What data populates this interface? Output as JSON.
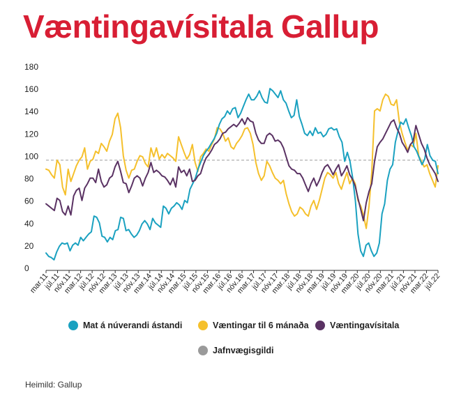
{
  "title": "Væntingavísitala Gallup",
  "source": "Heimild: Gallup",
  "colors": {
    "title": "#d81e34",
    "current": "#1aa1c0",
    "expectations": "#f5c02c",
    "index": "#5a3263",
    "equilibrium": "#9a9a9a"
  },
  "legend": {
    "current": "Mat á núverandi ástandi",
    "expectations": "Væntingar til 6 mánaða",
    "index": "Væntingavísitala",
    "equilibrium": "Jafnvægisgildi"
  },
  "chart_data": {
    "type": "line",
    "ylim": [
      0,
      180
    ],
    "yticks": [
      0,
      20,
      40,
      60,
      80,
      100,
      120,
      140,
      160,
      180
    ],
    "equilibrium": 96,
    "x_start": "2011-03",
    "x_end": "2022-07",
    "xtick_labels": [
      "mar.11",
      "júl.11",
      "nóv.11",
      "mar.12",
      "júl.12",
      "nóv.12",
      "mar.13",
      "júl.13",
      "nóv.13",
      "mar.14",
      "júl.14",
      "nóv.14",
      "mar.15",
      "júl.15",
      "nóv.15",
      "mar.16",
      "júl.16",
      "nóv.16",
      "mar.17",
      "júl.17",
      "nóv.17",
      "mar.18",
      "júl.18",
      "nóv.18",
      "mar.19",
      "júl.19",
      "nóv.19",
      "mar.20",
      "júl.20",
      "nóv.20",
      "mar.21",
      "júl.21",
      "nóv.21",
      "mar.22",
      "júl.22"
    ],
    "series": [
      {
        "name": "Mat á núverandi ástandi",
        "key": "current",
        "values": [
          13,
          10,
          9,
          7,
          14,
          19,
          22,
          21,
          22,
          15,
          20,
          22,
          20,
          27,
          24,
          27,
          30,
          32,
          46,
          45,
          40,
          28,
          27,
          23,
          27,
          25,
          33,
          34,
          45,
          44,
          33,
          34,
          30,
          27,
          29,
          33,
          39,
          42,
          39,
          34,
          44,
          40,
          38,
          36,
          55,
          53,
          48,
          53,
          55,
          58,
          56,
          52,
          60,
          58,
          70,
          75,
          80,
          88,
          94,
          100,
          104,
          107,
          111,
          115,
          120,
          128,
          133,
          135,
          140,
          137,
          142,
          143,
          134,
          138,
          144,
          150,
          155,
          150,
          150,
          153,
          158,
          152,
          148,
          147,
          160,
          158,
          155,
          152,
          158,
          150,
          147,
          140,
          134,
          136,
          150,
          135,
          128,
          120,
          118,
          122,
          118,
          125,
          120,
          121,
          117,
          119,
          124,
          125,
          123,
          124,
          117,
          112,
          95,
          103,
          95,
          80,
          60,
          30,
          15,
          10,
          20,
          22,
          15,
          10,
          13,
          22,
          48,
          57,
          78,
          88,
          92,
          112,
          122,
          130,
          128,
          133,
          125,
          118,
          108,
          104,
          98,
          92,
          97,
          110,
          100,
          96,
          95,
          84
        ]
      },
      {
        "name": "Væntingar til 6 mánaða",
        "key": "expectations",
        "values": [
          88,
          87,
          83,
          80,
          96,
          92,
          72,
          65,
          88,
          77,
          84,
          91,
          96,
          99,
          107,
          88,
          95,
          97,
          104,
          102,
          111,
          108,
          104,
          113,
          119,
          133,
          138,
          125,
          100,
          87,
          80,
          87,
          88,
          95,
          100,
          99,
          93,
          90,
          107,
          99,
          107,
          97,
          101,
          98,
          102,
          100,
          98,
          95,
          117,
          110,
          103,
          97,
          101,
          110,
          94,
          86,
          99,
          102,
          106,
          104,
          110,
          115,
          125,
          124,
          120,
          113,
          116,
          108,
          106,
          111,
          114,
          118,
          124,
          125,
          120,
          110,
          94,
          84,
          78,
          82,
          95,
          91,
          85,
          80,
          78,
          75,
          78,
          66,
          57,
          50,
          46,
          48,
          54,
          52,
          48,
          46,
          55,
          60,
          52,
          60,
          70,
          80,
          85,
          83,
          80,
          85,
          75,
          70,
          78,
          85,
          75,
          80,
          75,
          60,
          55,
          47,
          35,
          55,
          85,
          140,
          142,
          140,
          150,
          155,
          153,
          146,
          145,
          150,
          130,
          120,
          112,
          105,
          110,
          108,
          120,
          100,
          95,
          90,
          92,
          84,
          78,
          72,
          91
        ]
      },
      {
        "name": "Væntingavísitala",
        "key": "index",
        "values": [
          57,
          55,
          53,
          51,
          62,
          60,
          50,
          47,
          55,
          47,
          64,
          69,
          71,
          60,
          71,
          75,
          80,
          80,
          76,
          88,
          77,
          72,
          74,
          80,
          82,
          90,
          95,
          86,
          76,
          75,
          67,
          73,
          80,
          82,
          80,
          73,
          80,
          85,
          94,
          85,
          87,
          85,
          82,
          81,
          78,
          74,
          80,
          72,
          90,
          85,
          87,
          82,
          88,
          77,
          78,
          82,
          84,
          92,
          98,
          101,
          105,
          110,
          112,
          115,
          120,
          121,
          124,
          126,
          128,
          126,
          129,
          133,
          128,
          134,
          131,
          130,
          120,
          114,
          111,
          111,
          118,
          120,
          118,
          113,
          114,
          112,
          107,
          99,
          91,
          88,
          87,
          84,
          84,
          80,
          74,
          68,
          75,
          80,
          73,
          78,
          85,
          90,
          92,
          88,
          83,
          88,
          92,
          82,
          86,
          91,
          83,
          79,
          73,
          62,
          52,
          42,
          58,
          68,
          75,
          95,
          108,
          112,
          115,
          120,
          125,
          130,
          132,
          125,
          120,
          112,
          108,
          103,
          110,
          113,
          127,
          119,
          111,
          106,
          98,
          92,
          88,
          84,
          77
        ]
      }
    ]
  }
}
